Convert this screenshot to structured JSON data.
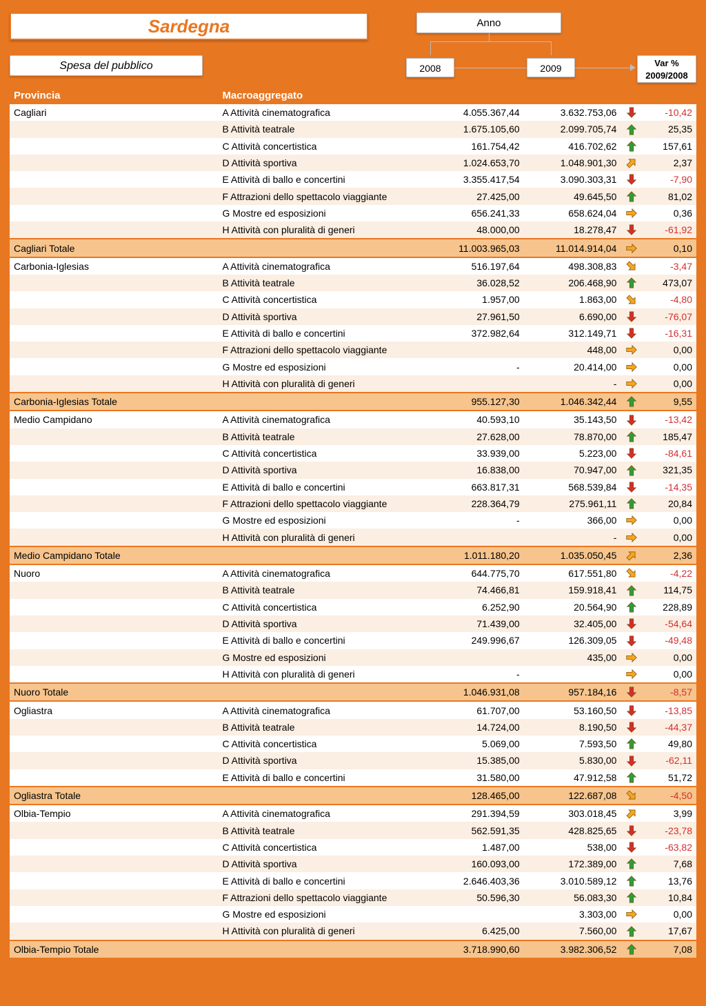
{
  "colors": {
    "accent": "#e87722",
    "total_row": "#f6c48c",
    "stripe": "#fbeee2",
    "neg_text": "#d32f2f",
    "arrow_up": "#2e9e3c",
    "arrow_down": "#d32f2f",
    "arrow_right": "#f5a623",
    "arrow_upright": "#f5a623",
    "arrow_downright": "#f5a623"
  },
  "header": {
    "region": "Sardegna",
    "subtitle": "Spesa del pubblico",
    "anno_label": "Anno",
    "year1": "2008",
    "year2": "2009",
    "var_label_l1": "Var %",
    "var_label_l2": "2009/2008",
    "col_provincia": "Provincia",
    "col_macro": "Macroaggregato"
  },
  "arrow_types": {
    "up": "up",
    "down": "down",
    "right": "right",
    "upright": "upright",
    "downright": "downright"
  },
  "provinces": [
    {
      "name": "Cagliari",
      "rows": [
        {
          "macro": "A Attività cinematografica",
          "v2008": "4.055.367,44",
          "v2009": "3.632.753,06",
          "arrow": "down",
          "var": "-10,42",
          "neg": true
        },
        {
          "macro": "B Attività teatrale",
          "v2008": "1.675.105,60",
          "v2009": "2.099.705,74",
          "arrow": "up",
          "var": "25,35",
          "neg": false
        },
        {
          "macro": "C Attività concertistica",
          "v2008": "161.754,42",
          "v2009": "416.702,62",
          "arrow": "up",
          "var": "157,61",
          "neg": false
        },
        {
          "macro": "D Attività sportiva",
          "v2008": "1.024.653,70",
          "v2009": "1.048.901,30",
          "arrow": "upright",
          "var": "2,37",
          "neg": false
        },
        {
          "macro": "E Attività di ballo e concertini",
          "v2008": "3.355.417,54",
          "v2009": "3.090.303,31",
          "arrow": "down",
          "var": "-7,90",
          "neg": true
        },
        {
          "macro": "F Attrazioni dello spettacolo viaggiante",
          "v2008": "27.425,00",
          "v2009": "49.645,50",
          "arrow": "up",
          "var": "81,02",
          "neg": false
        },
        {
          "macro": "G Mostre ed esposizioni",
          "v2008": "656.241,33",
          "v2009": "658.624,04",
          "arrow": "right",
          "var": "0,36",
          "neg": false
        },
        {
          "macro": "H Attività con pluralità di generi",
          "v2008": "48.000,00",
          "v2009": "18.278,47",
          "arrow": "down",
          "var": "-61,92",
          "neg": true
        }
      ],
      "total": {
        "label": "Cagliari Totale",
        "v2008": "11.003.965,03",
        "v2009": "11.014.914,04",
        "arrow": "right",
        "var": "0,10",
        "neg": false
      }
    },
    {
      "name": "Carbonia-Iglesias",
      "rows": [
        {
          "macro": "A Attività cinematografica",
          "v2008": "516.197,64",
          "v2009": "498.308,83",
          "arrow": "downright",
          "var": "-3,47",
          "neg": true
        },
        {
          "macro": "B Attività teatrale",
          "v2008": "36.028,52",
          "v2009": "206.468,90",
          "arrow": "up",
          "var": "473,07",
          "neg": false
        },
        {
          "macro": "C Attività concertistica",
          "v2008": "1.957,00",
          "v2009": "1.863,00",
          "arrow": "downright",
          "var": "-4,80",
          "neg": true
        },
        {
          "macro": "D Attività sportiva",
          "v2008": "27.961,50",
          "v2009": "6.690,00",
          "arrow": "down",
          "var": "-76,07",
          "neg": true
        },
        {
          "macro": "E Attività di ballo e concertini",
          "v2008": "372.982,64",
          "v2009": "312.149,71",
          "arrow": "down",
          "var": "-16,31",
          "neg": true
        },
        {
          "macro": "F Attrazioni dello spettacolo viaggiante",
          "v2008": "",
          "v2009": "448,00",
          "arrow": "right",
          "var": "0,00",
          "neg": false
        },
        {
          "macro": "G Mostre ed esposizioni",
          "v2008": "-",
          "v2009": "20.414,00",
          "arrow": "right",
          "var": "0,00",
          "neg": false
        },
        {
          "macro": "H Attività con pluralità di generi",
          "v2008": "",
          "v2009": "-",
          "arrow": "right",
          "var": "0,00",
          "neg": false
        }
      ],
      "total": {
        "label": "Carbonia-Iglesias Totale",
        "v2008": "955.127,30",
        "v2009": "1.046.342,44",
        "arrow": "up",
        "var": "9,55",
        "neg": false
      }
    },
    {
      "name": "Medio Campidano",
      "rows": [
        {
          "macro": "A Attività cinematografica",
          "v2008": "40.593,10",
          "v2009": "35.143,50",
          "arrow": "down",
          "var": "-13,42",
          "neg": true
        },
        {
          "macro": "B Attività teatrale",
          "v2008": "27.628,00",
          "v2009": "78.870,00",
          "arrow": "up",
          "var": "185,47",
          "neg": false
        },
        {
          "macro": "C Attività concertistica",
          "v2008": "33.939,00",
          "v2009": "5.223,00",
          "arrow": "down",
          "var": "-84,61",
          "neg": true
        },
        {
          "macro": "D Attività sportiva",
          "v2008": "16.838,00",
          "v2009": "70.947,00",
          "arrow": "up",
          "var": "321,35",
          "neg": false
        },
        {
          "macro": "E Attività di ballo e concertini",
          "v2008": "663.817,31",
          "v2009": "568.539,84",
          "arrow": "down",
          "var": "-14,35",
          "neg": true
        },
        {
          "macro": "F Attrazioni dello spettacolo viaggiante",
          "v2008": "228.364,79",
          "v2009": "275.961,11",
          "arrow": "up",
          "var": "20,84",
          "neg": false
        },
        {
          "macro": "G Mostre ed esposizioni",
          "v2008": "-",
          "v2009": "366,00",
          "arrow": "right",
          "var": "0,00",
          "neg": false
        },
        {
          "macro": "H Attività con pluralità di generi",
          "v2008": "",
          "v2009": "-",
          "arrow": "right",
          "var": "0,00",
          "neg": false
        }
      ],
      "total": {
        "label": "Medio Campidano Totale",
        "v2008": "1.011.180,20",
        "v2009": "1.035.050,45",
        "arrow": "upright",
        "var": "2,36",
        "neg": false
      }
    },
    {
      "name": "Nuoro",
      "rows": [
        {
          "macro": "A Attività cinematografica",
          "v2008": "644.775,70",
          "v2009": "617.551,80",
          "arrow": "downright",
          "var": "-4,22",
          "neg": true
        },
        {
          "macro": "B Attività teatrale",
          "v2008": "74.466,81",
          "v2009": "159.918,41",
          "arrow": "up",
          "var": "114,75",
          "neg": false
        },
        {
          "macro": "C Attività concertistica",
          "v2008": "6.252,90",
          "v2009": "20.564,90",
          "arrow": "up",
          "var": "228,89",
          "neg": false
        },
        {
          "macro": "D Attività sportiva",
          "v2008": "71.439,00",
          "v2009": "32.405,00",
          "arrow": "down",
          "var": "-54,64",
          "neg": true
        },
        {
          "macro": "E Attività di ballo e concertini",
          "v2008": "249.996,67",
          "v2009": "126.309,05",
          "arrow": "down",
          "var": "-49,48",
          "neg": true
        },
        {
          "macro": "G Mostre ed esposizioni",
          "v2008": "",
          "v2009": "435,00",
          "arrow": "right",
          "var": "0,00",
          "neg": false
        },
        {
          "macro": "H Attività con pluralità di generi",
          "v2008": "-",
          "v2009": "",
          "arrow": "right",
          "var": "0,00",
          "neg": false
        }
      ],
      "total": {
        "label": "Nuoro Totale",
        "v2008": "1.046.931,08",
        "v2009": "957.184,16",
        "arrow": "down",
        "var": "-8,57",
        "neg": true
      }
    },
    {
      "name": "Ogliastra",
      "rows": [
        {
          "macro": "A Attività cinematografica",
          "v2008": "61.707,00",
          "v2009": "53.160,50",
          "arrow": "down",
          "var": "-13,85",
          "neg": true
        },
        {
          "macro": "B Attività teatrale",
          "v2008": "14.724,00",
          "v2009": "8.190,50",
          "arrow": "down",
          "var": "-44,37",
          "neg": true
        },
        {
          "macro": "C Attività concertistica",
          "v2008": "5.069,00",
          "v2009": "7.593,50",
          "arrow": "up",
          "var": "49,80",
          "neg": false
        },
        {
          "macro": "D Attività sportiva",
          "v2008": "15.385,00",
          "v2009": "5.830,00",
          "arrow": "down",
          "var": "-62,11",
          "neg": true
        },
        {
          "macro": "E Attività di ballo e concertini",
          "v2008": "31.580,00",
          "v2009": "47.912,58",
          "arrow": "up",
          "var": "51,72",
          "neg": false
        }
      ],
      "total": {
        "label": "Ogliastra Totale",
        "v2008": "128.465,00",
        "v2009": "122.687,08",
        "arrow": "downright",
        "var": "-4,50",
        "neg": true
      }
    },
    {
      "name": "Olbia-Tempio",
      "rows": [
        {
          "macro": "A Attività cinematografica",
          "v2008": "291.394,59",
          "v2009": "303.018,45",
          "arrow": "upright",
          "var": "3,99",
          "neg": false
        },
        {
          "macro": "B Attività teatrale",
          "v2008": "562.591,35",
          "v2009": "428.825,65",
          "arrow": "down",
          "var": "-23,78",
          "neg": true
        },
        {
          "macro": "C Attività concertistica",
          "v2008": "1.487,00",
          "v2009": "538,00",
          "arrow": "down",
          "var": "-63,82",
          "neg": true
        },
        {
          "macro": "D Attività sportiva",
          "v2008": "160.093,00",
          "v2009": "172.389,00",
          "arrow": "up",
          "var": "7,68",
          "neg": false
        },
        {
          "macro": "E Attività di ballo e concertini",
          "v2008": "2.646.403,36",
          "v2009": "3.010.589,12",
          "arrow": "up",
          "var": "13,76",
          "neg": false
        },
        {
          "macro": "F Attrazioni dello spettacolo viaggiante",
          "v2008": "50.596,30",
          "v2009": "56.083,30",
          "arrow": "up",
          "var": "10,84",
          "neg": false
        },
        {
          "macro": "G Mostre ed esposizioni",
          "v2008": "",
          "v2009": "3.303,00",
          "arrow": "right",
          "var": "0,00",
          "neg": false
        },
        {
          "macro": "H Attività con pluralità di generi",
          "v2008": "6.425,00",
          "v2009": "7.560,00",
          "arrow": "up",
          "var": "17,67",
          "neg": false
        }
      ],
      "total": {
        "label": "Olbia-Tempio Totale",
        "v2008": "3.718.990,60",
        "v2009": "3.982.306,52",
        "arrow": "up",
        "var": "7,08",
        "neg": false
      }
    }
  ]
}
